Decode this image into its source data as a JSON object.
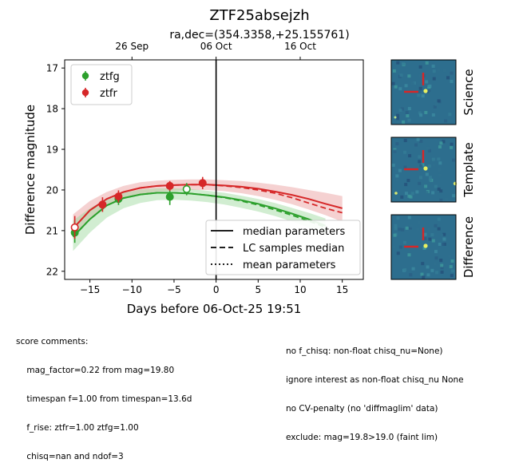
{
  "figure": {
    "title": "ZTF25absejzh",
    "subtitle": "ra,dec=(354.3358,+25.155761)",
    "colors": {
      "ztfg": "#2ca02c",
      "ztfr": "#d62728",
      "g_band": "#98d898",
      "r_band": "#e89a9a",
      "cutout_bg": "#2d6e8e",
      "crosshair": "#d62728"
    }
  },
  "chart_data": {
    "type": "scatter",
    "title": "ZTF25absejzh",
    "subtitle": "ra,dec=(354.3358,+25.155761)",
    "xlabel": "Days before 06-Oct-25 19:51",
    "ylabel": "Difference magnitude",
    "xlim": [
      -18,
      17.5
    ],
    "ylim": [
      22.2,
      16.8
    ],
    "y_inverted": true,
    "xticks": [
      -15,
      -10,
      -5,
      0,
      5,
      10,
      15
    ],
    "yticks": [
      17,
      18,
      19,
      20,
      21,
      22
    ],
    "top_axis": {
      "ticks": [
        {
          "x": -10,
          "label": "26 Sep"
        },
        {
          "x": 0,
          "label": "06 Oct"
        },
        {
          "x": 10,
          "label": "16 Oct"
        }
      ]
    },
    "reference_line_x": 0,
    "legend_top_left": [
      "ztfg",
      "ztfr"
    ],
    "legend_bottom_right": [
      "median parameters",
      "LC samples median",
      "mean parameters"
    ],
    "series": [
      {
        "name": "ztfg",
        "color": "#2ca02c",
        "points": [
          {
            "x": -16.8,
            "y": 21.05,
            "err": 0.25,
            "hollow": false
          },
          {
            "x": -11.6,
            "y": 20.22,
            "err": 0.15,
            "hollow": false
          },
          {
            "x": -5.5,
            "y": 20.17,
            "err": 0.2,
            "hollow": false
          },
          {
            "x": -3.5,
            "y": 19.98,
            "err": 0.15,
            "hollow": true
          }
        ],
        "model_median": {
          "x": [
            -17,
            -15,
            -13,
            -11,
            -9,
            -7,
            -5,
            -3,
            -1,
            1,
            3,
            5,
            7,
            9,
            11,
            13
          ],
          "y": [
            21.15,
            20.72,
            20.38,
            20.2,
            20.11,
            20.07,
            20.07,
            20.09,
            20.13,
            20.18,
            20.25,
            20.34,
            20.45,
            20.58,
            20.72,
            20.88
          ]
        },
        "band_upper": [
          20.75,
          20.45,
          20.22,
          20.07,
          19.99,
          19.96,
          19.96,
          19.98,
          20.02,
          20.07,
          20.14,
          20.22,
          20.32,
          20.44,
          20.56,
          20.7
        ],
        "band_lower": [
          21.5,
          21.05,
          20.68,
          20.45,
          20.32,
          20.25,
          20.24,
          20.26,
          20.3,
          20.36,
          20.44,
          20.53,
          20.64,
          20.77,
          20.92,
          21.08
        ]
      },
      {
        "name": "ztfr",
        "color": "#d62728",
        "points": [
          {
            "x": -16.8,
            "y": 20.92,
            "err": 0.28,
            "hollow": true
          },
          {
            "x": -13.5,
            "y": 20.36,
            "err": 0.18,
            "hollow": false
          },
          {
            "x": -11.6,
            "y": 20.16,
            "err": 0.15,
            "hollow": false
          },
          {
            "x": -5.5,
            "y": 19.9,
            "err": 0.12,
            "hollow": false
          },
          {
            "x": -1.6,
            "y": 19.83,
            "err": 0.15,
            "hollow": false
          }
        ],
        "model_median": {
          "x": [
            -17,
            -15,
            -13,
            -11,
            -9,
            -7,
            -5,
            -3,
            -1,
            1,
            3,
            5,
            7,
            9,
            11,
            13,
            15
          ],
          "y": [
            20.95,
            20.5,
            20.22,
            20.05,
            19.95,
            19.9,
            19.88,
            19.87,
            19.87,
            19.89,
            19.92,
            19.97,
            20.04,
            20.12,
            20.22,
            20.34,
            20.45
          ]
        },
        "samples_median": {
          "x": [
            -17,
            -15,
            -13,
            -11,
            -9,
            -7,
            -5,
            -3,
            -1,
            1,
            3,
            5,
            7,
            9,
            11,
            13,
            15
          ],
          "y": [
            20.95,
            20.5,
            20.22,
            20.05,
            19.95,
            19.9,
            19.88,
            19.87,
            19.87,
            19.9,
            19.94,
            20.0,
            20.08,
            20.19,
            20.32,
            20.45,
            20.56
          ]
        },
        "band_upper": [
          20.6,
          20.27,
          20.05,
          19.9,
          19.81,
          19.77,
          19.75,
          19.74,
          19.74,
          19.76,
          19.78,
          19.82,
          19.87,
          19.93,
          20.0,
          20.07,
          20.15
        ],
        "band_lower": [
          21.2,
          20.72,
          20.4,
          20.2,
          20.1,
          20.04,
          20.02,
          20.0,
          20.0,
          20.03,
          20.08,
          20.15,
          20.24,
          20.35,
          20.48,
          20.62,
          20.78
        ]
      }
    ],
    "green_samples_median": {
      "x": [
        -17,
        -15,
        -13,
        -11,
        -9,
        -7,
        -5,
        -3,
        -1,
        1,
        3,
        5,
        7,
        9,
        11,
        13
      ],
      "y": [
        21.15,
        20.72,
        20.38,
        20.2,
        20.11,
        20.07,
        20.07,
        20.09,
        20.13,
        20.19,
        20.27,
        20.37,
        20.49,
        20.62,
        20.76,
        20.92
      ]
    }
  },
  "cutouts": [
    {
      "label": "Science"
    },
    {
      "label": "Template"
    },
    {
      "label": "Difference"
    }
  ],
  "comments": {
    "heading": "score comments:",
    "left": [
      "mag_factor=0.22 from mag=19.80",
      "timespan f=1.00 from timespan=13.6d",
      "f_rise: ztfr=1.00 ztfg=1.00",
      "chisq=nan and ndof=3"
    ],
    "right": [
      "no f_chisq: non-float chisq_nu=None)",
      "ignore interest as non-float chisq_nu None",
      "no CV-penalty (no 'diffmaglim' data)",
      "exclude: mag=19.8>19.0 (faint lim)"
    ]
  }
}
